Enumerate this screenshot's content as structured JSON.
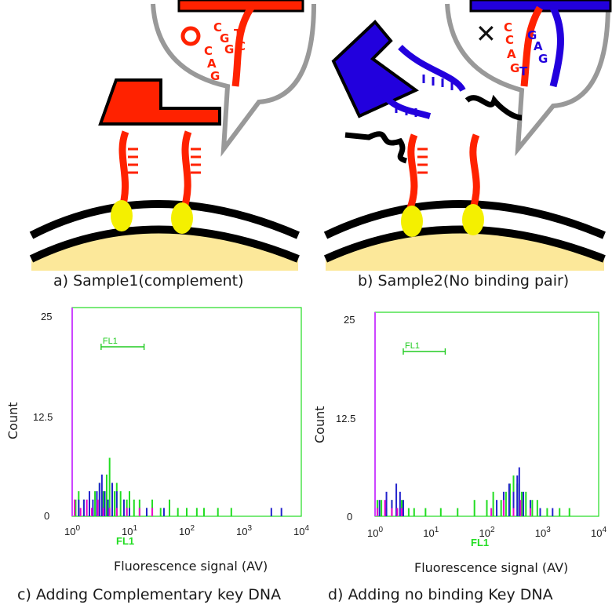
{
  "captions": {
    "a": "a) Sample1(complement)",
    "b": "b) Sample2(No binding pair)",
    "c": "c) Adding Complementary key DNA",
    "d": "d) Adding no binding Key DNA"
  },
  "bubble_a": {
    "mark": "O",
    "bases": [
      "C",
      "G",
      "G",
      "C",
      "A",
      "G",
      "T",
      "C"
    ]
  },
  "bubble_b": {
    "mark": "✕",
    "bases": [
      "C",
      "G",
      "A",
      "C",
      "A",
      "G",
      "T",
      "G"
    ]
  },
  "colors": {
    "red": "#ff2200",
    "blue": "#2200dd",
    "bead": "#f4f000",
    "cell": "#fce89a",
    "hist_green": "#22dd22",
    "hist_blue": "#2222cc",
    "hist_magenta": "#ee00cc"
  },
  "chart_data": [
    {
      "type": "bar",
      "panel": "c",
      "xlabel": "Fluorescence signal (AV)",
      "ylabel": "Count",
      "xscale": "log",
      "xlim": [
        1,
        10000
      ],
      "ylim": [
        0,
        25
      ],
      "xticks": [
        "10^0",
        "10^1",
        "10^2",
        "10^3",
        "10^4"
      ],
      "yticks": [
        "0",
        "12.5",
        "25"
      ],
      "gate": {
        "name": "FL1",
        "range": [
          3.2,
          18
        ]
      },
      "axis_name": "FL1",
      "series": [
        {
          "color": "#22dd22",
          "bins": [
            [
              1.15,
              2
            ],
            [
              1.3,
              3
            ],
            [
              1.6,
              2
            ],
            [
              2,
              2
            ],
            [
              2.5,
              3
            ],
            [
              3,
              4
            ],
            [
              3.5,
              3
            ],
            [
              4,
              5
            ],
            [
              4.5,
              7
            ],
            [
              5,
              4
            ],
            [
              5.5,
              3
            ],
            [
              6,
              4
            ],
            [
              7,
              3
            ],
            [
              8,
              2
            ],
            [
              9,
              2
            ],
            [
              10,
              3
            ],
            [
              12,
              2
            ],
            [
              15,
              2
            ],
            [
              20,
              1
            ],
            [
              25,
              2
            ],
            [
              35,
              1
            ],
            [
              50,
              2
            ],
            [
              70,
              1
            ],
            [
              100,
              1
            ],
            [
              150,
              1
            ],
            [
              200,
              1
            ],
            [
              350,
              1
            ],
            [
              600,
              1
            ]
          ]
        },
        {
          "color": "#2222cc",
          "bins": [
            [
              1.1,
              1
            ],
            [
              1.3,
              2
            ],
            [
              1.6,
              2
            ],
            [
              2,
              3
            ],
            [
              2.3,
              2
            ],
            [
              2.7,
              3
            ],
            [
              3,
              4
            ],
            [
              3.3,
              5
            ],
            [
              3.7,
              3
            ],
            [
              4.2,
              2
            ],
            [
              5,
              4
            ],
            [
              6,
              3
            ],
            [
              8,
              2
            ],
            [
              10,
              1
            ],
            [
              20,
              1
            ],
            [
              40,
              1
            ],
            [
              3000,
              1
            ],
            [
              4500,
              1
            ]
          ]
        },
        {
          "color": "#ee00cc",
          "bins": [
            [
              1.1,
              2
            ],
            [
              1.4,
              1
            ],
            [
              1.8,
              2
            ],
            [
              2.2,
              1
            ],
            [
              2.8,
              2
            ],
            [
              3.5,
              1
            ],
            [
              4.5,
              1
            ],
            [
              6,
              1
            ],
            [
              9,
              1
            ],
            [
              15,
              1
            ],
            [
              25,
              1
            ]
          ]
        }
      ]
    },
    {
      "type": "bar",
      "panel": "d",
      "xlabel": "Fluorescence signal (AV)",
      "ylabel": "Count",
      "xscale": "log",
      "xlim": [
        1,
        10000
      ],
      "ylim": [
        0,
        25
      ],
      "xticks": [
        "10^0",
        "10^1",
        "10^2",
        "10^3",
        "10^4"
      ],
      "yticks": [
        "0",
        "12.5",
        "25"
      ],
      "gate": {
        "name": "FL1",
        "range": [
          3.2,
          18
        ]
      },
      "axis_name": "FL1",
      "series": [
        {
          "color": "#22dd22",
          "bins": [
            [
              1.1,
              2
            ],
            [
              1.3,
              2
            ],
            [
              1.6,
              1
            ],
            [
              2,
              2
            ],
            [
              2.5,
              1
            ],
            [
              3,
              2
            ],
            [
              4,
              1
            ],
            [
              5,
              1
            ],
            [
              8,
              1
            ],
            [
              15,
              1
            ],
            [
              30,
              1
            ],
            [
              60,
              2
            ],
            [
              100,
              2
            ],
            [
              130,
              3
            ],
            [
              180,
              2
            ],
            [
              220,
              3
            ],
            [
              260,
              4
            ],
            [
              300,
              5
            ],
            [
              350,
              4
            ],
            [
              420,
              3
            ],
            [
              500,
              3
            ],
            [
              650,
              2
            ],
            [
              800,
              2
            ],
            [
              1200,
              1
            ],
            [
              2000,
              1
            ],
            [
              3000,
              1
            ]
          ]
        },
        {
          "color": "#2222cc",
          "bins": [
            [
              1.2,
              2
            ],
            [
              1.6,
              3
            ],
            [
              2,
              2
            ],
            [
              2.4,
              4
            ],
            [
              2.8,
              3
            ],
            [
              3.2,
              2
            ],
            [
              150,
              2
            ],
            [
              200,
              3
            ],
            [
              250,
              4
            ],
            [
              300,
              3
            ],
            [
              350,
              5
            ],
            [
              380,
              6
            ],
            [
              450,
              3
            ],
            [
              600,
              2
            ],
            [
              900,
              1
            ],
            [
              1500,
              1
            ]
          ]
        },
        {
          "color": "#ee00cc",
          "bins": [
            [
              1.1,
              1
            ],
            [
              1.5,
              2
            ],
            [
              2,
              1
            ],
            [
              2.5,
              1
            ],
            [
              3,
              1
            ],
            [
              120,
              1
            ],
            [
              200,
              2
            ],
            [
              300,
              1
            ],
            [
              400,
              2
            ],
            [
              600,
              1
            ]
          ]
        }
      ]
    }
  ]
}
